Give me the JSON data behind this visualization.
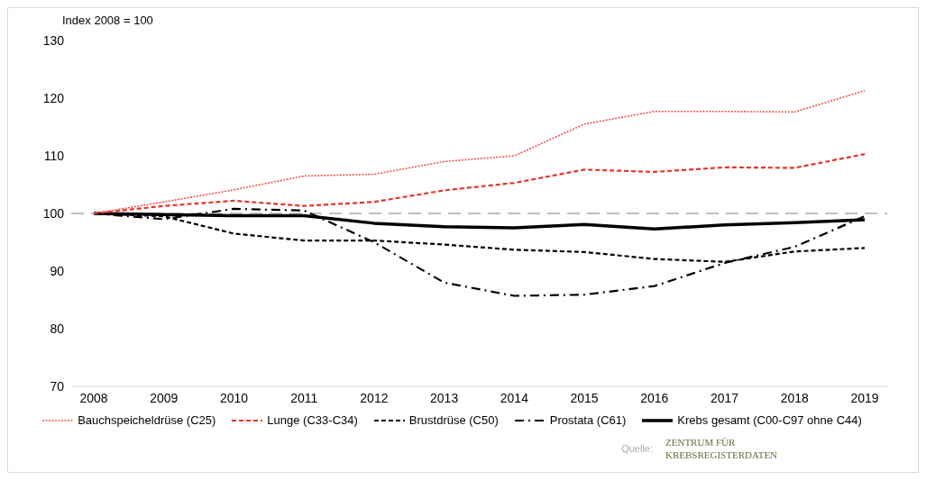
{
  "chart_data": {
    "type": "line",
    "ylabel": "Index 2008 = 100",
    "categories": [
      "2008",
      "2009",
      "2010",
      "2011",
      "2012",
      "2013",
      "2014",
      "2015",
      "2016",
      "2017",
      "2018",
      "2019"
    ],
    "series": [
      {
        "name": "Bauchspeicheldrüse (C25)",
        "color": "#e8514a",
        "line_style": "dotted",
        "values": [
          100,
          102,
          104.1,
          106.5,
          106.8,
          109,
          110,
          115.5,
          117.7,
          117.7,
          117.6,
          121.3
        ]
      },
      {
        "name": "Lunge (C33-C34)",
        "color": "#e8332a",
        "line_style": "dashed",
        "values": [
          100,
          101.3,
          102.2,
          101.3,
          102,
          104,
          105.3,
          107.6,
          107.2,
          108,
          107.9,
          110.3
        ]
      },
      {
        "name": "Brustdrüse (C50)",
        "color": "#000000",
        "line_style": "dashed",
        "values": [
          100,
          99.5,
          96.5,
          95.3,
          95.3,
          94.6,
          93.7,
          93.3,
          92.1,
          91.6,
          93.4,
          94
        ]
      },
      {
        "name": "Prostata (C61)",
        "color": "#000000",
        "line_style": "dashdot",
        "values": [
          100,
          99,
          100.8,
          100.5,
          95,
          88,
          85.7,
          85.9,
          87.4,
          91.4,
          94.2,
          99.5
        ]
      },
      {
        "name": "Krebs gesamt (C00-C97 ohne C44)",
        "color": "#000000",
        "line_style": "solid",
        "values": [
          100,
          99.8,
          99.6,
          99.6,
          98.3,
          97.7,
          97.5,
          98.1,
          97.3,
          98,
          98.4,
          98.9
        ]
      }
    ],
    "ylim": [
      70,
      130
    ],
    "yticks": [
      70,
      80,
      90,
      100,
      110,
      120,
      130
    ],
    "grid": false,
    "legend": "bottom",
    "marker": "none",
    "ref_lines": [
      {
        "axis": "y",
        "value": 100,
        "color": "#bfbfbf",
        "line_style": "dashed"
      }
    ],
    "annotations": [
      "Quelle:",
      "ZENTRUM FÜR KREBSREGISTERDATEN"
    ]
  }
}
